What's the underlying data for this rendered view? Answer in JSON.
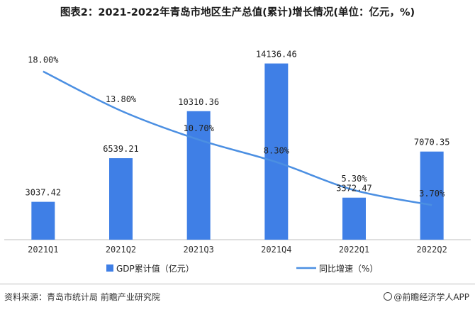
{
  "title": "图表2：2021-2022年青岛市地区生产总值(累计)增长情况(单位：亿元，%)",
  "source": "资料来源：青岛市统计局 前瞻产业研究院",
  "brand": "@前瞻经济学人APP",
  "colors": {
    "bar": "#3f7fe6",
    "line": "#4b8fe2",
    "axis": "#bfbfbf"
  },
  "legend": [
    {
      "label": "GDP累计值（亿元）",
      "kind": "bar"
    },
    {
      "label": "同比增速（%）",
      "kind": "line"
    }
  ],
  "chart_data": {
    "type": "bar",
    "categories": [
      "2021Q1",
      "2021Q2",
      "2021Q3",
      "2021Q4",
      "2022Q1",
      "2022Q2"
    ],
    "series": [
      {
        "name": "GDP累计值（亿元）",
        "type": "bar",
        "values": [
          3037.42,
          6539.21,
          10310.36,
          14136.46,
          3372.47,
          7070.35
        ],
        "labels": [
          "3037.42",
          "6539.21",
          "10310.36",
          "14136.46",
          "3372.47",
          "7070.35"
        ]
      },
      {
        "name": "同比增速（%）",
        "type": "line",
        "values": [
          18.0,
          13.8,
          10.7,
          8.3,
          5.3,
          3.7
        ],
        "labels": [
          "18.00%",
          "13.80%",
          "10.70%",
          "8.30%",
          "5.30%",
          "3.70%"
        ]
      }
    ],
    "ylim_bar": [
      0,
      16500
    ],
    "ylim_line": [
      0,
      22
    ],
    "grid": false,
    "legend_position": "bottom"
  }
}
